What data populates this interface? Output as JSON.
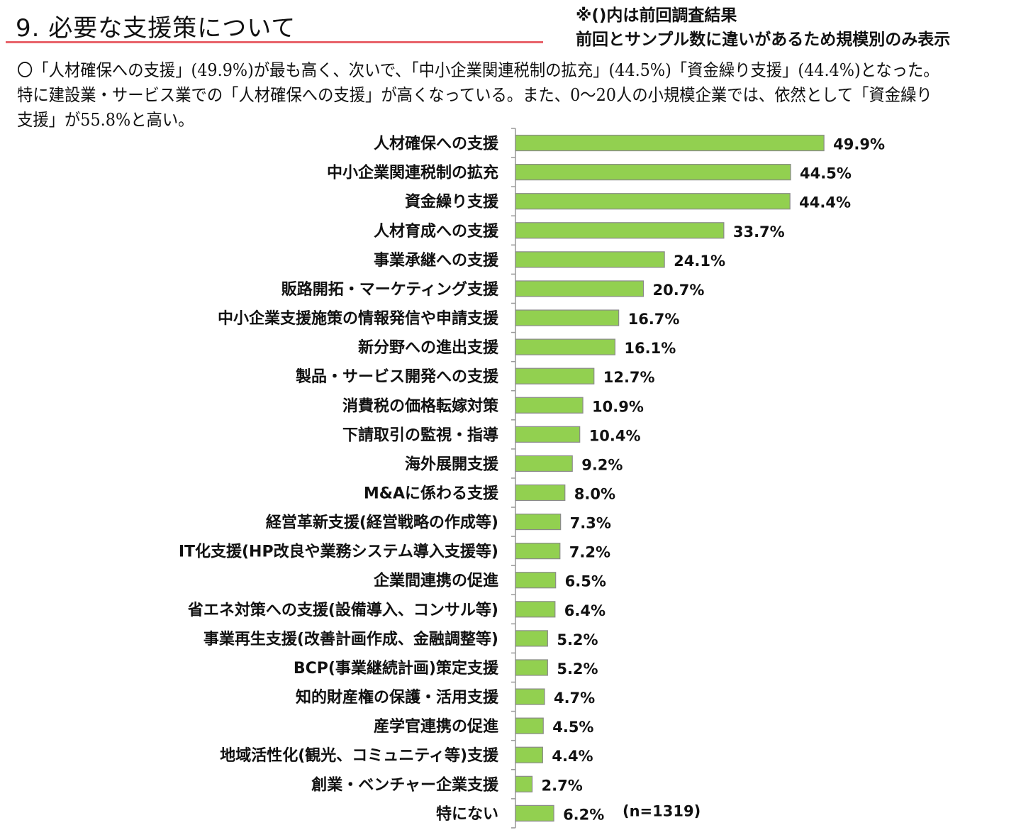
{
  "header": {
    "title": "9. 必要な支援策について",
    "note_line1": "※()内は前回調査結果",
    "note_line2": "前回とサンプル数に違いがあるため規模別のみ表示",
    "summary": "〇「人材確保への支援」(49.9%)が最も高く、次いで、「中小企業関連税制の拡充」(44.5%)「資金繰り支援」(44.4%)となった。特に建設業・サービス業での「人材確保への支援」が高くなっている。また、0〜20人の小規模企業では、依然として「資金繰り支援」が55.8%と高い。"
  },
  "chart_data": {
    "type": "bar",
    "orientation": "horizontal",
    "title": "",
    "categories": [
      "人材確保への支援",
      "中小企業関連税制の拡充",
      "資金繰り支援",
      "人材育成への支援",
      "事業承継への支援",
      "販路開拓・マーケティング支援",
      "中小企業支援施策の情報発信や申請支援",
      "新分野への進出支援",
      "製品・サービス開発への支援",
      "消費税の価格転嫁対策",
      "下請取引の監視・指導",
      "海外展開支援",
      "M&Aに係わる支援",
      "経営革新支援(経営戦略の作成等)",
      "IT化支援(HP改良や業務システム導入支援等)",
      "企業間連携の促進",
      "省エネ対策への支援(設備導入、コンサル等)",
      "事業再生支援(改善計画作成、金融調整等)",
      "BCP(事業継続計画)策定支援",
      "知的財産権の保護・活用支援",
      "産学官連携の促進",
      "地域活性化(観光、コミュニティ等)支援",
      "創業・ベンチャー企業支援",
      "特にない"
    ],
    "values": [
      49.9,
      44.5,
      44.4,
      33.7,
      24.1,
      20.7,
      16.7,
      16.1,
      12.7,
      10.9,
      10.4,
      9.2,
      8.0,
      7.3,
      7.2,
      6.5,
      6.4,
      5.2,
      5.2,
      4.7,
      4.5,
      4.4,
      2.7,
      6.2
    ],
    "value_labels": [
      "49.9%",
      "44.5%",
      "44.4%",
      "33.7%",
      "24.1%",
      "20.7%",
      "16.7%",
      "16.1%",
      "12.7%",
      "10.9%",
      "10.4%",
      "9.2%",
      "8.0%",
      "7.3%",
      "7.2%",
      "6.5%",
      "6.4%",
      "5.2%",
      "5.2%",
      "4.7%",
      "4.5%",
      "4.4%",
      "2.7%",
      "6.2%"
    ],
    "unit": "%",
    "xlim": [
      0,
      80
    ],
    "sample_note": "(n=1319)",
    "bar_color": "#92d050",
    "grid": false
  }
}
